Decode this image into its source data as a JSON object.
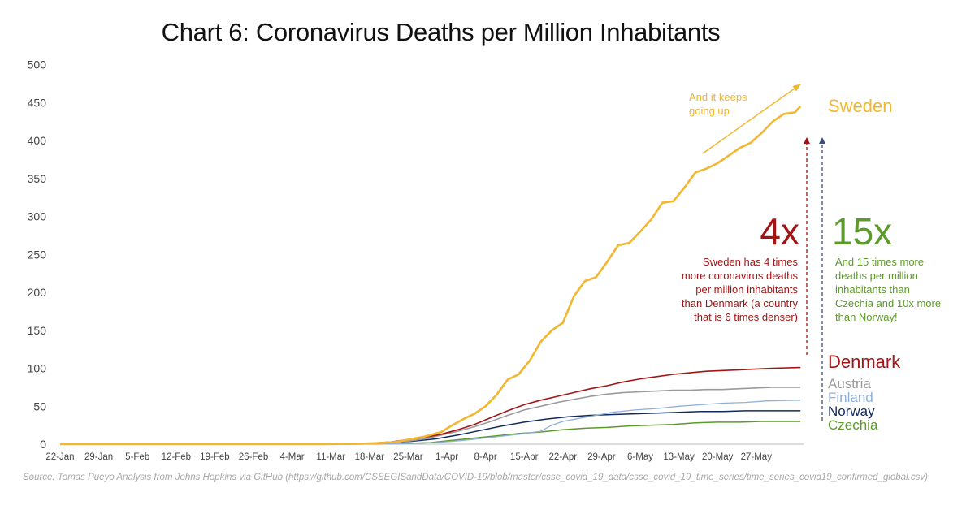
{
  "title": "Chart 6: Coronavirus Deaths per Million Inhabitants",
  "source": "Source: Tomas Pueyo Analysis from Johns Hopkins via GitHub (https://github.com/CSSEGISandData/COVID-19/blob/master/csse_covid_19_data/csse_covid_19_time_series/time_series_covid19_confirmed_global.csv)",
  "annotations": {
    "trend": "And it keeps going up",
    "ratio_denmark": "4x",
    "denmark_note": "Sweden has 4 times more coronavirus deaths per million inhabitants than Denmark (a country that is 6 times denser)",
    "ratio_czechia": "15x",
    "czechia_note": "And 15 times more deaths per million inhabitants than Czechia and 10x more than Norway!"
  },
  "colors": {
    "sweden": "#f2b630",
    "denmark": "#a31515",
    "austria": "#9b9b9b",
    "finland": "#8fb0d9",
    "norway": "#112a5c",
    "czechia": "#5c9a2a"
  },
  "chart_data": {
    "type": "line",
    "title": "Chart 6: Coronavirus Deaths per Million Inhabitants",
    "xlabel": "",
    "ylabel": "",
    "ylim": [
      0,
      500
    ],
    "yticks": [
      0,
      50,
      100,
      150,
      200,
      250,
      300,
      350,
      400,
      450,
      500
    ],
    "xtick_labels": [
      "22-Jan",
      "29-Jan",
      "5-Feb",
      "12-Feb",
      "19-Feb",
      "26-Feb",
      "4-Mar",
      "11-Mar",
      "18-Mar",
      "25-Mar",
      "1-Apr",
      "8-Apr",
      "15-Apr",
      "22-Apr",
      "29-Apr",
      "6-May",
      "13-May",
      "20-May",
      "27-May"
    ],
    "grid": false,
    "legend": "right, as labels at line ends",
    "series": [
      {
        "name": "Sweden",
        "points": [
          [
            "22-Jan",
            0
          ],
          [
            "10-Mar",
            0
          ],
          [
            "16-Mar",
            0.5
          ],
          [
            "20-Mar",
            1.5
          ],
          [
            "23-Mar",
            3
          ],
          [
            "25-Mar",
            6
          ],
          [
            "28-Mar",
            10
          ],
          [
            "31-Mar",
            16
          ],
          [
            "2-Apr",
            25
          ],
          [
            "4-Apr",
            33
          ],
          [
            "6-Apr",
            40
          ],
          [
            "8-Apr",
            50
          ],
          [
            "10-Apr",
            65
          ],
          [
            "12-Apr",
            85
          ],
          [
            "14-Apr",
            92
          ],
          [
            "16-Apr",
            110
          ],
          [
            "18-Apr",
            135
          ],
          [
            "20-Apr",
            150
          ],
          [
            "22-Apr",
            160
          ],
          [
            "24-Apr",
            195
          ],
          [
            "26-Apr",
            215
          ],
          [
            "28-Apr",
            220
          ],
          [
            "30-Apr",
            240
          ],
          [
            "2-May",
            262
          ],
          [
            "4-May",
            265
          ],
          [
            "6-May",
            280
          ],
          [
            "8-May",
            296
          ],
          [
            "10-May",
            318
          ],
          [
            "12-May",
            320
          ],
          [
            "14-May",
            338
          ],
          [
            "16-May",
            358
          ],
          [
            "18-May",
            363
          ],
          [
            "20-May",
            370
          ],
          [
            "22-May",
            380
          ],
          [
            "24-May",
            390
          ],
          [
            "26-May",
            397
          ],
          [
            "28-May",
            410
          ],
          [
            "30-May",
            425
          ],
          [
            "1-Jun",
            435
          ],
          [
            "3-Jun",
            437
          ],
          [
            "4-Jun",
            445
          ]
        ]
      },
      {
        "name": "Denmark",
        "points": [
          [
            "22-Jan",
            0
          ],
          [
            "12-Mar",
            0
          ],
          [
            "18-Mar",
            1
          ],
          [
            "22-Mar",
            3
          ],
          [
            "25-Mar",
            6
          ],
          [
            "28-Mar",
            9
          ],
          [
            "31-Mar",
            13
          ],
          [
            "3-Apr",
            19
          ],
          [
            "6-Apr",
            26
          ],
          [
            "9-Apr",
            35
          ],
          [
            "12-Apr",
            44
          ],
          [
            "15-Apr",
            52
          ],
          [
            "18-Apr",
            58
          ],
          [
            "21-Apr",
            63
          ],
          [
            "24-Apr",
            68
          ],
          [
            "27-Apr",
            73
          ],
          [
            "30-Apr",
            77
          ],
          [
            "3-May",
            82
          ],
          [
            "6-May",
            86
          ],
          [
            "9-May",
            89
          ],
          [
            "12-May",
            92
          ],
          [
            "15-May",
            94
          ],
          [
            "18-May",
            96
          ],
          [
            "21-May",
            97
          ],
          [
            "24-May",
            98
          ],
          [
            "27-May",
            99
          ],
          [
            "30-May",
            100
          ],
          [
            "4-Jun",
            101
          ]
        ]
      },
      {
        "name": "Austria",
        "points": [
          [
            "22-Jan",
            0
          ],
          [
            "12-Mar",
            0
          ],
          [
            "18-Mar",
            1
          ],
          [
            "22-Mar",
            2
          ],
          [
            "25-Mar",
            4
          ],
          [
            "28-Mar",
            7
          ],
          [
            "31-Mar",
            12
          ],
          [
            "3-Apr",
            17
          ],
          [
            "6-Apr",
            23
          ],
          [
            "9-Apr",
            30
          ],
          [
            "12-Apr",
            38
          ],
          [
            "15-Apr",
            45
          ],
          [
            "18-Apr",
            50
          ],
          [
            "21-Apr",
            55
          ],
          [
            "24-Apr",
            59
          ],
          [
            "27-Apr",
            63
          ],
          [
            "30-Apr",
            66
          ],
          [
            "3-May",
            68
          ],
          [
            "6-May",
            69
          ],
          [
            "9-May",
            70
          ],
          [
            "12-May",
            71
          ],
          [
            "15-May",
            71
          ],
          [
            "18-May",
            72
          ],
          [
            "21-May",
            72
          ],
          [
            "24-May",
            73
          ],
          [
            "27-May",
            74
          ],
          [
            "30-May",
            75
          ],
          [
            "4-Jun",
            75
          ]
        ]
      },
      {
        "name": "Finland",
        "points": [
          [
            "22-Jan",
            0
          ],
          [
            "20-Mar",
            0
          ],
          [
            "25-Mar",
            1
          ],
          [
            "30-Mar",
            2
          ],
          [
            "4-Apr",
            5
          ],
          [
            "9-Apr",
            9
          ],
          [
            "14-Apr",
            13
          ],
          [
            "18-Apr",
            17
          ],
          [
            "20-Apr",
            25
          ],
          [
            "22-Apr",
            30
          ],
          [
            "25-Apr",
            34
          ],
          [
            "28-Apr",
            38
          ],
          [
            "1-May",
            42
          ],
          [
            "5-May",
            45
          ],
          [
            "9-May",
            47
          ],
          [
            "13-May",
            50
          ],
          [
            "17-May",
            52
          ],
          [
            "21-May",
            54
          ],
          [
            "25-May",
            55
          ],
          [
            "29-May",
            57
          ],
          [
            "4-Jun",
            58
          ]
        ]
      },
      {
        "name": "Norway",
        "points": [
          [
            "22-Jan",
            0
          ],
          [
            "12-Mar",
            0
          ],
          [
            "18-Mar",
            1
          ],
          [
            "22-Mar",
            2
          ],
          [
            "26-Mar",
            4
          ],
          [
            "30-Mar",
            7
          ],
          [
            "3-Apr",
            12
          ],
          [
            "7-Apr",
            18
          ],
          [
            "11-Apr",
            24
          ],
          [
            "15-Apr",
            29
          ],
          [
            "19-Apr",
            33
          ],
          [
            "23-Apr",
            36
          ],
          [
            "27-Apr",
            38
          ],
          [
            "1-May",
            39
          ],
          [
            "5-May",
            40
          ],
          [
            "9-May",
            41
          ],
          [
            "13-May",
            42
          ],
          [
            "17-May",
            43
          ],
          [
            "21-May",
            43
          ],
          [
            "25-May",
            44
          ],
          [
            "29-May",
            44
          ],
          [
            "4-Jun",
            44
          ]
        ]
      },
      {
        "name": "Czechia",
        "points": [
          [
            "22-Jan",
            0
          ],
          [
            "15-Mar",
            0
          ],
          [
            "20-Mar",
            0.5
          ],
          [
            "25-Mar",
            1
          ],
          [
            "29-Mar",
            2
          ],
          [
            "2-Apr",
            5
          ],
          [
            "6-Apr",
            8
          ],
          [
            "10-Apr",
            11
          ],
          [
            "14-Apr",
            14
          ],
          [
            "18-Apr",
            16
          ],
          [
            "22-Apr",
            19
          ],
          [
            "26-Apr",
            21
          ],
          [
            "30-Apr",
            22
          ],
          [
            "4-May",
            24
          ],
          [
            "8-May",
            25
          ],
          [
            "12-May",
            26
          ],
          [
            "16-May",
            28
          ],
          [
            "20-May",
            29
          ],
          [
            "24-May",
            29
          ],
          [
            "28-May",
            30
          ],
          [
            "4-Jun",
            30
          ]
        ]
      }
    ]
  }
}
